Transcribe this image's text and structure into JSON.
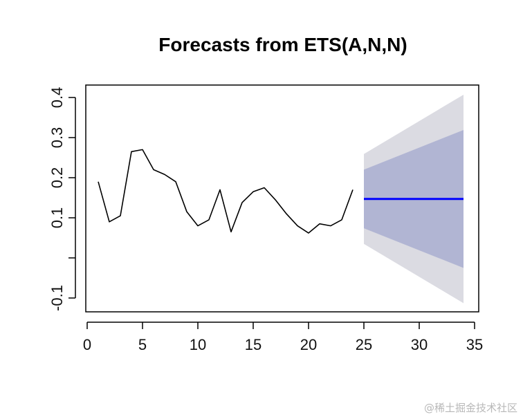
{
  "chart_data": {
    "type": "line",
    "title": "Forecasts from ETS(A,N,N)",
    "xlabel": "",
    "ylabel": "",
    "xlim": [
      0,
      35
    ],
    "ylim": [
      -0.1,
      0.4
    ],
    "x_ticks": [
      0,
      5,
      10,
      15,
      20,
      25,
      30,
      35
    ],
    "x_tick_labels": [
      "0",
      "5",
      "10",
      "15",
      "20",
      "25",
      "30",
      "35"
    ],
    "y_ticks": [
      -0.1,
      0.0,
      0.1,
      0.2,
      0.3,
      0.4
    ],
    "y_tick_labels": [
      "-0.1",
      "",
      "0.1",
      "0.2",
      "0.3",
      "0.4"
    ],
    "grid": false,
    "series": [
      {
        "x": [
          1,
          2,
          3,
          4,
          5,
          6,
          7,
          8,
          9,
          10,
          11,
          12,
          13,
          14,
          15,
          16,
          17,
          18,
          19,
          20,
          21,
          22,
          23,
          24
        ],
        "values": [
          0.19,
          0.09,
          0.105,
          0.265,
          0.27,
          0.22,
          0.208,
          0.19,
          0.115,
          0.08,
          0.095,
          0.17,
          0.065,
          0.138,
          0.165,
          0.175,
          0.145,
          0.11,
          0.08,
          0.062,
          0.085,
          0.08,
          0.095,
          0.17
        ],
        "color": "#000000"
      },
      {
        "x": [
          25,
          34
        ],
        "values": [
          0.147,
          0.147
        ],
        "color": "#0000ff"
      }
    ],
    "intervals": [
      {
        "x": [
          25,
          34
        ],
        "lower": [
          0.035,
          -0.113
        ],
        "upper": [
          0.259,
          0.407
        ],
        "color": "#dbdbe2"
      },
      {
        "x": [
          25,
          34
        ],
        "lower": [
          0.074,
          -0.025
        ],
        "upper": [
          0.22,
          0.319
        ],
        "color": "#b1b5d3"
      }
    ]
  },
  "watermark": "@稀土掘金技术社区"
}
